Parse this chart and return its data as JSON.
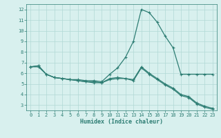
{
  "xlabel": "Humidex (Indice chaleur)",
  "x": [
    0,
    1,
    2,
    3,
    4,
    5,
    6,
    7,
    8,
    9,
    10,
    11,
    12,
    13,
    14,
    15,
    16,
    17,
    18,
    19,
    20,
    21,
    22,
    23
  ],
  "line1": [
    6.6,
    6.7,
    5.9,
    5.6,
    5.5,
    5.4,
    5.4,
    5.3,
    5.3,
    5.2,
    5.9,
    6.5,
    7.5,
    9.0,
    12.0,
    11.7,
    10.8,
    9.5,
    8.4,
    5.9,
    5.9,
    5.9,
    5.9,
    5.9
  ],
  "line2": [
    6.6,
    6.7,
    5.9,
    5.6,
    5.5,
    5.4,
    5.3,
    5.2,
    5.2,
    5.1,
    5.5,
    5.6,
    5.5,
    5.4,
    6.6,
    6.0,
    5.5,
    5.0,
    4.6,
    4.0,
    3.8,
    3.2,
    2.9,
    2.7
  ],
  "line3": [
    6.6,
    6.6,
    5.9,
    5.6,
    5.5,
    5.4,
    5.3,
    5.2,
    5.1,
    5.1,
    5.4,
    5.5,
    5.5,
    5.3,
    6.5,
    5.9,
    5.4,
    4.9,
    4.5,
    3.9,
    3.7,
    3.1,
    2.8,
    2.6
  ],
  "line_color": "#2d7d73",
  "bg_color": "#d8f0ee",
  "grid_color": "#b0d8d5",
  "ylim": [
    2.5,
    12.5
  ],
  "xlim": [
    -0.5,
    23.5
  ],
  "yticks": [
    3,
    4,
    5,
    6,
    7,
    8,
    9,
    10,
    11,
    12
  ],
  "xticks": [
    0,
    1,
    2,
    3,
    4,
    5,
    6,
    7,
    8,
    9,
    10,
    11,
    12,
    13,
    14,
    15,
    16,
    17,
    18,
    19,
    20,
    21,
    22,
    23
  ],
  "marker": "+",
  "markersize": 3,
  "linewidth": 0.9,
  "tick_fontsize": 5.0,
  "xlabel_fontsize": 6.0
}
